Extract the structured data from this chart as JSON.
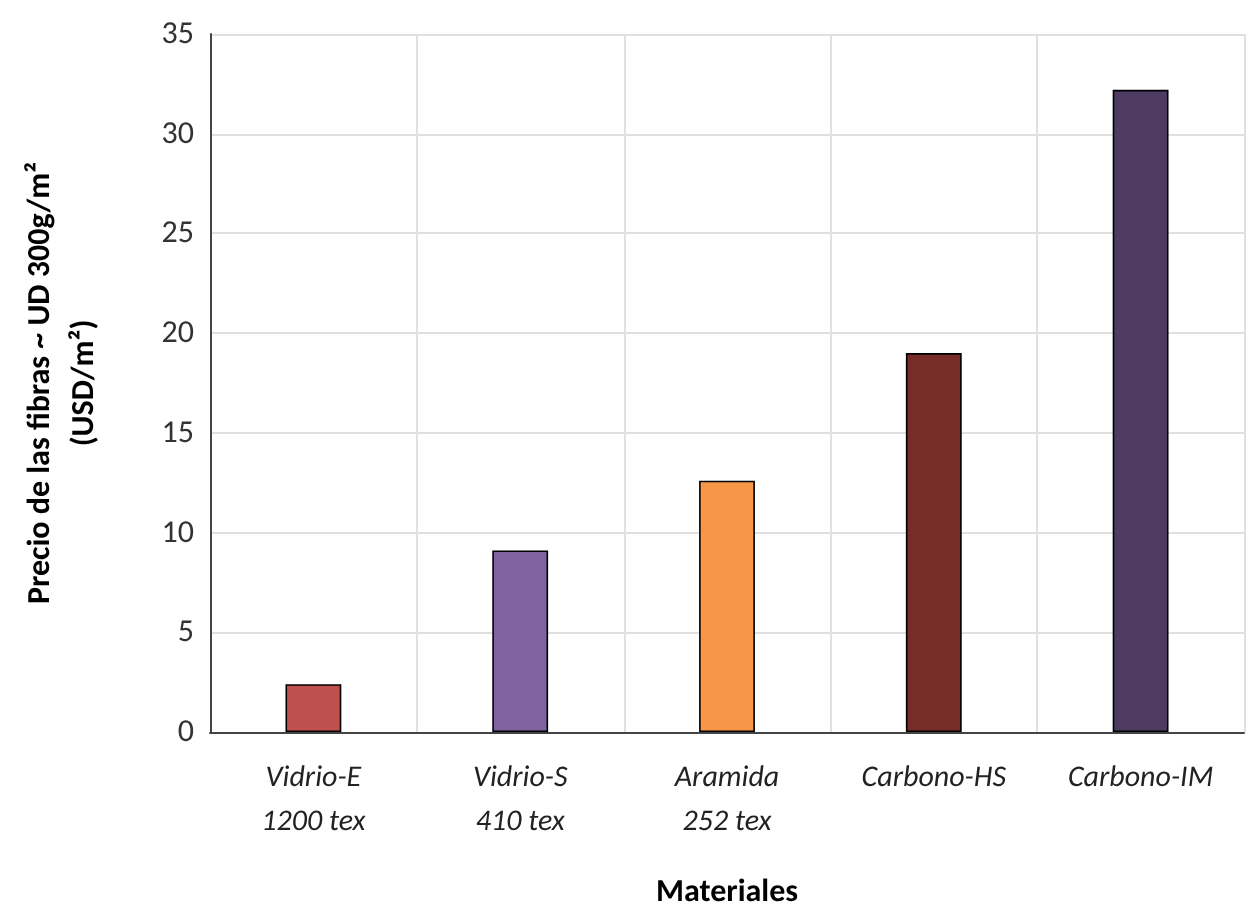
{
  "chart_data": {
    "type": "bar",
    "xlabel": "Materiales",
    "ylabel": "Precio de las fibras ~ UD 300g/m²\n(USD/m²)",
    "categories": [
      "Vidrio-E\n1200 tex",
      "Vidrio-S\n410 tex",
      "Aramida\n252 tex",
      "Carbono-HS",
      "Carbono-IM"
    ],
    "values": [
      2.4,
      9.1,
      12.6,
      19.0,
      32.2
    ],
    "colors": [
      "#c0504d",
      "#8064a2",
      "#f79646",
      "#772c2a",
      "#4d3b62"
    ],
    "ylim": [
      0,
      35
    ],
    "yticks": [
      0,
      5,
      10,
      15,
      20,
      25,
      30,
      35
    ],
    "grid": true
  }
}
